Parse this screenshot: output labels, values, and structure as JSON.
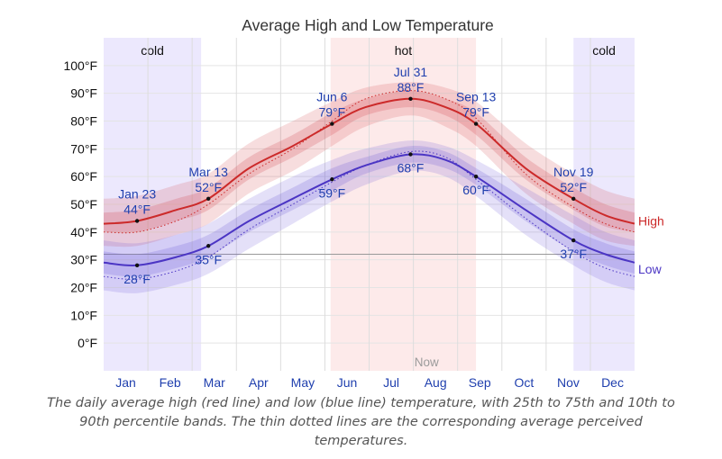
{
  "chart_data": {
    "type": "line",
    "title": "Average High and Low Temperature",
    "xlabel": "",
    "ylabel": "",
    "x_range": [
      0,
      365
    ],
    "ylim": [
      -10,
      110
    ],
    "yticks": [
      0,
      10,
      20,
      30,
      40,
      50,
      60,
      70,
      80,
      90,
      100
    ],
    "ytick_labels": [
      "0°F",
      "10°F",
      "20°F",
      "30°F",
      "40°F",
      "50°F",
      "60°F",
      "70°F",
      "80°F",
      "90°F",
      "100°F"
    ],
    "month_labels": [
      "Jan",
      "Feb",
      "Mar",
      "Apr",
      "May",
      "Jun",
      "Jul",
      "Aug",
      "Sep",
      "Oct",
      "Nov",
      "Dec"
    ],
    "reference_line_y": 32,
    "now_label": "Now",
    "now_day": 222,
    "seasons": [
      {
        "label": "cold",
        "start": 0,
        "end": 67,
        "color": "#ece8fd"
      },
      {
        "label": "hot",
        "start": 156,
        "end": 256,
        "color": "#fdeaea"
      },
      {
        "label": "cold",
        "start": 323,
        "end": 365,
        "color": "#ece8fd"
      }
    ],
    "series": [
      {
        "name": "High",
        "color": "#cc2a2a",
        "band_color": "#d0414a",
        "points": [
          [
            0,
            43
          ],
          [
            23,
            44
          ],
          [
            50,
            48
          ],
          [
            72,
            52
          ],
          [
            100,
            63
          ],
          [
            130,
            71
          ],
          [
            157,
            79
          ],
          [
            180,
            85
          ],
          [
            211,
            88
          ],
          [
            235,
            85
          ],
          [
            256,
            79
          ],
          [
            290,
            63
          ],
          [
            323,
            52
          ],
          [
            345,
            46
          ],
          [
            365,
            43
          ]
        ],
        "p25_p75": [
          [
            0,
            40,
            47
          ],
          [
            23,
            40,
            48
          ],
          [
            50,
            44,
            52
          ],
          [
            72,
            48,
            56
          ],
          [
            100,
            59,
            67
          ],
          [
            130,
            67,
            75
          ],
          [
            157,
            75,
            83
          ],
          [
            180,
            82,
            88
          ],
          [
            211,
            85,
            91
          ],
          [
            235,
            82,
            88
          ],
          [
            256,
            75,
            83
          ],
          [
            290,
            59,
            67
          ],
          [
            323,
            48,
            56
          ],
          [
            345,
            42,
            50
          ],
          [
            365,
            40,
            47
          ]
        ],
        "p10_p90": [
          [
            0,
            35,
            52
          ],
          [
            23,
            35,
            53
          ],
          [
            50,
            39,
            57
          ],
          [
            72,
            43,
            61
          ],
          [
            100,
            54,
            72
          ],
          [
            130,
            62,
            80
          ],
          [
            157,
            71,
            87
          ],
          [
            180,
            78,
            92
          ],
          [
            211,
            82,
            94
          ],
          [
            235,
            78,
            92
          ],
          [
            256,
            71,
            87
          ],
          [
            290,
            54,
            72
          ],
          [
            323,
            43,
            61
          ],
          [
            345,
            37,
            55
          ],
          [
            365,
            35,
            52
          ]
        ],
        "perceived": [
          [
            0,
            40
          ],
          [
            23,
            40
          ],
          [
            50,
            44
          ],
          [
            72,
            50
          ],
          [
            100,
            61
          ],
          [
            130,
            70
          ],
          [
            157,
            80
          ],
          [
            180,
            88
          ],
          [
            211,
            91
          ],
          [
            235,
            88
          ],
          [
            256,
            81
          ],
          [
            290,
            61
          ],
          [
            323,
            49
          ],
          [
            345,
            43
          ],
          [
            365,
            40
          ]
        ]
      },
      {
        "name": "Low",
        "color": "#4b35c4",
        "band_color": "#6b55d8",
        "points": [
          [
            0,
            29
          ],
          [
            23,
            28
          ],
          [
            50,
            31
          ],
          [
            72,
            35
          ],
          [
            100,
            44
          ],
          [
            130,
            52
          ],
          [
            157,
            59
          ],
          [
            180,
            64
          ],
          [
            211,
            68
          ],
          [
            235,
            66
          ],
          [
            256,
            60
          ],
          [
            290,
            48
          ],
          [
            323,
            37
          ],
          [
            345,
            32
          ],
          [
            365,
            29
          ]
        ],
        "p25_p75": [
          [
            0,
            25,
            33
          ],
          [
            23,
            24,
            32
          ],
          [
            50,
            27,
            35
          ],
          [
            72,
            31,
            39
          ],
          [
            100,
            40,
            48
          ],
          [
            130,
            48,
            56
          ],
          [
            157,
            55,
            63
          ],
          [
            180,
            61,
            67
          ],
          [
            211,
            65,
            71
          ],
          [
            235,
            63,
            69
          ],
          [
            256,
            57,
            63
          ],
          [
            290,
            44,
            52
          ],
          [
            323,
            33,
            41
          ],
          [
            345,
            28,
            36
          ],
          [
            365,
            25,
            33
          ]
        ],
        "p10_p90": [
          [
            0,
            19,
            37
          ],
          [
            23,
            18,
            36
          ],
          [
            50,
            21,
            39
          ],
          [
            72,
            25,
            43
          ],
          [
            100,
            34,
            52
          ],
          [
            130,
            43,
            60
          ],
          [
            157,
            51,
            66
          ],
          [
            180,
            57,
            70
          ],
          [
            211,
            62,
            73
          ],
          [
            235,
            60,
            71
          ],
          [
            256,
            53,
            66
          ],
          [
            290,
            39,
            56
          ],
          [
            323,
            28,
            46
          ],
          [
            345,
            22,
            40
          ],
          [
            365,
            19,
            37
          ]
        ],
        "perceived": [
          [
            0,
            24
          ],
          [
            23,
            23
          ],
          [
            50,
            26
          ],
          [
            72,
            31
          ],
          [
            100,
            41
          ],
          [
            130,
            50
          ],
          [
            157,
            58
          ],
          [
            180,
            64
          ],
          [
            211,
            69
          ],
          [
            235,
            67
          ],
          [
            256,
            59
          ],
          [
            290,
            45
          ],
          [
            323,
            33
          ],
          [
            345,
            27
          ],
          [
            365,
            24
          ]
        ]
      }
    ],
    "annotations": [
      {
        "series": "High",
        "day": 23,
        "value": 44,
        "date": "Jan 23",
        "temp": "44°F",
        "pos": "above"
      },
      {
        "series": "High",
        "day": 72,
        "value": 52,
        "date": "Mar 13",
        "temp": "52°F",
        "pos": "above"
      },
      {
        "series": "High",
        "day": 157,
        "value": 79,
        "date": "Jun 6",
        "temp": "79°F",
        "pos": "above"
      },
      {
        "series": "High",
        "day": 211,
        "value": 88,
        "date": "Jul 31",
        "temp": "88°F",
        "pos": "above"
      },
      {
        "series": "High",
        "day": 256,
        "value": 79,
        "date": "Sep 13",
        "temp": "79°F",
        "pos": "above"
      },
      {
        "series": "High",
        "day": 323,
        "value": 52,
        "date": "Nov 19",
        "temp": "52°F",
        "pos": "above"
      },
      {
        "series": "Low",
        "day": 23,
        "value": 28,
        "date": "",
        "temp": "28°F",
        "pos": "below"
      },
      {
        "series": "Low",
        "day": 72,
        "value": 35,
        "date": "",
        "temp": "35°F",
        "pos": "below"
      },
      {
        "series": "Low",
        "day": 157,
        "value": 59,
        "date": "",
        "temp": "59°F",
        "pos": "below"
      },
      {
        "series": "Low",
        "day": 211,
        "value": 68,
        "date": "",
        "temp": "68°F",
        "pos": "below"
      },
      {
        "series": "Low",
        "day": 256,
        "value": 60,
        "date": "",
        "temp": "60°F",
        "pos": "below"
      },
      {
        "series": "Low",
        "day": 323,
        "value": 37,
        "date": "",
        "temp": "37°F",
        "pos": "below"
      }
    ]
  },
  "caption": "The daily average high (red line) and low (blue line) temperature, with 25th to 75th and 10th to 90th percentile bands. The thin dotted lines are the corresponding average perceived temperatures."
}
